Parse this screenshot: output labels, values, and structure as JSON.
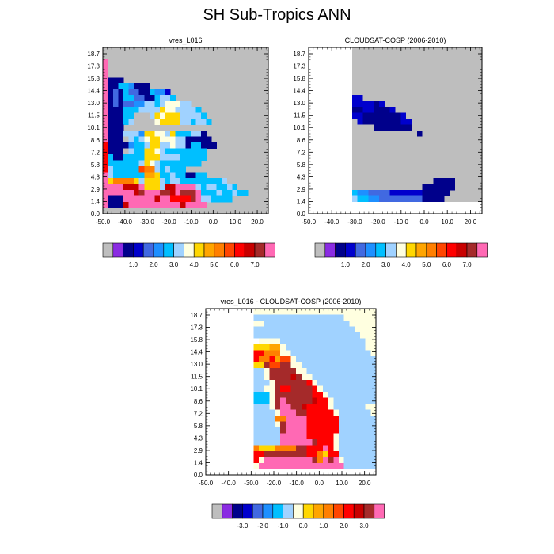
{
  "title": "SH Sub-Tropics ANN",
  "palette": [
    "#bebebe",
    "#8a2be2",
    "#00008b",
    "#0000cd",
    "#4169e1",
    "#1e90ff",
    "#00bfff",
    "#a0d2ff",
    "#ffffe0",
    "#ffd700",
    "#ffa500",
    "#ff7f00",
    "#ff4500",
    "#ff0000",
    "#c80000",
    "#a52a2a",
    "#ff69b4"
  ],
  "chart_data": [
    {
      "type": "heatmap",
      "title": "vres_L016",
      "x_ticks": [
        "-50.0",
        "-40.0",
        "-30.0",
        "-20.0",
        "-10.0",
        "0.0",
        "10.0",
        "20.0"
      ],
      "y_ticks": [
        "0.0",
        "1.4",
        "2.9",
        "4.3",
        "5.8",
        "7.2",
        "8.6",
        "10.1",
        "11.5",
        "13.0",
        "14.4",
        "15.8",
        "17.3",
        "18.7"
      ],
      "colorbar_labels": [
        "1.0",
        "2.0",
        "3.0",
        "4.0",
        "5.0",
        "6.0",
        "7.0"
      ],
      "x_range": [
        -50,
        25
      ],
      "y_levels": 14,
      "background_color": "#bebebe",
      "grid": [
        "................................",
        "................................",
        "QR..............................",
        "QR..............................",
        "Qd..............................",
        "QCCC............................",
        "QCCGGFCCC.......................",
        "QCECGEECCGFFD...................",
        "QCECGGEECCGHHG..................",
        "QCECEEFFHHGHIIIHH...............",
        "QCCCGGGHHHHJIIHHHHG.............",
        "QCCCGGRRRHJIJJJHHHHG............",
        "QCCCGHRRRRIJJJJHHGHHG...........",
        "QCCC.............................",
        "QCCCHHHFJJIIHJGGGHHC............",
        "QCCCRHGHIJJIIIHHCCCCC...........",
        "NCCCCFGGHJJHHIHHCGGCCC..........",
        "NCCCRHGGJJIHGGGGGGGG............",
        "NGCCGGGGJJJHHHHGGGGG............",
        "NGGGGGGHJIHGGGGGGGG.............",
        "NHGGGGGMLLHGHGGG................",
        "QHGGGGGGKKJGGHGGCCGG............",
        "QJLLLLJHJJJHGHHGGGGGGGGH........",
        "QQQQOOOQJJJHOOQQQQHGHHGGHGR.....",
        "QQQQQQOPQQQPPOQPPPQGGGHGGHGG....",
        "QCCCQQQQQQOQQNNNNPQHHGGGG.......",
        "QCCCOQQQQQQQQQQOQQQQ............",
        "................................"
      ]
    },
    {
      "type": "heatmap",
      "title": "CLOUDSAT-COSP (2006-2010)",
      "x_ticks": [
        "-50.0",
        "-40.0",
        "-30.0",
        "-20.0",
        "-10.0",
        "0.0",
        "10.0",
        "20.0"
      ],
      "y_ticks": [
        "0.0",
        "1.4",
        "2.9",
        "4.3",
        "5.8",
        "7.2",
        "8.6",
        "10.1",
        "11.5",
        "13.0",
        "14.4",
        "15.8",
        "17.3",
        "18.7"
      ],
      "colorbar_labels": [
        "1.0",
        "2.0",
        "3.0",
        "4.0",
        "5.0",
        "6.0",
        "7.0"
      ],
      "x_range": [
        -50,
        25
      ],
      "y_levels": 14,
      "background_color": "#bebebe",
      "missing_region": "white",
      "grid": [
        "wwwwwwww........................",
        "wwwwwwww........................",
        "wwwwwwww........................",
        "wwwwwwww........................",
        "wwwwwwww........................",
        "wwwwwwww........................",
        "wwwwwwww........................",
        "wwwwwwwwRRRR....................",
        "wwwwwwwwDDRRRR..................",
        "wwwwwwwwDDDDCDRR................",
        "wwwwwwwwCCDDCCCDRR..............",
        "wwwwwwwwDDCCCCCCCDR.............",
        "wwwwwwwwRDCCCCCCCDDR............",
        "wwwwwwwwRRRRCCCCCCCRR...........",
        "wwwwwwwwRRRRRRRRRRRRCRR.........",
        "wwwwwwwwRRRRRRRRRRRRRRRR........",
        "wwwwwwwwRRRRRRRRRRRRRRRRR.......",
        "wwwwwwwwRRRRRRRRRRRRRRRRR.......",
        "wwwwwwwwRRRRRRRRRRRRRRRRR.......",
        "wwwwwwwwRRRRRRRRRRRRRRRRR.......",
        "wwwwwwwwRRRRRRRRRRRRRRRRRR......",
        "wwwwwwwwRRRRRRRRRRRRRRRRRR......",
        "wwwwwwwwRRRRRRRRRRRRRRRCCCC.....",
        "wwwwwwwwRRRRRRRRRRRRRCCCCCC.....",
        "wwwwwwwwGFFEEEEDDDDDDCCCCC......",
        "wwwwwwwwHGGFFEEEEEEEECCCC.......",
        "wwwwwwwwwwwwwwwwwwwwwwwwwwwwwwww",
        "wwwwwwwwwwwwwwwwwwwwwwwwwwwwwwww"
      ]
    },
    {
      "type": "heatmap",
      "title": "vres_L016 - CLOUDSAT-COSP (2006-2010)",
      "x_ticks": [
        "-50.0",
        "-40.0",
        "-30.0",
        "-20.0",
        "-10.0",
        "0.0",
        "10.0",
        "20.0"
      ],
      "y_ticks": [
        "0.0",
        "1.4",
        "2.9",
        "4.3",
        "5.8",
        "7.2",
        "8.6",
        "10.1",
        "11.5",
        "13.0",
        "14.4",
        "15.8",
        "17.3",
        "18.7"
      ],
      "colorbar_labels": [
        "-3.0",
        "-2.0",
        "-1.0",
        "0.0",
        "1.0",
        "2.0",
        "3.0"
      ],
      "x_range": [
        -50,
        25
      ],
      "y_levels": 14,
      "background_color": "#ffffff",
      "grid": [
        "wwwwwwwwwIIIIIIIIIIIIIIIIIIIIIII",
        "wwwwwwwwwHHHHHHHHHHHHHHHHHIIIIII",
        "wwwwwwwwwIIHHHHHHHHHHHHHHHHIIIII",
        "wwwwwwwwwHHHHHHHHHHHHHHHHHHHIIII",
        "wwwwwwwwwHHHHHHHHHHHHHHHHHHHHIII",
        "wwwwwwwwwwIIIIHHHHHHHHHHHHHHHHII",
        "wwwwwwwwwJJJKKIHHHHHHHHHHHHHHHII",
        "wwwwwwwwwNNLLLIIHHHHHHHHHHHHHHHI",
        "wwwwwwwwwNLLNKMMIHHHHHHHHHHHHHHH",
        "wwwwwwwwwJJPMMPPIIHHHHHHHHHHHHHH",
        "wwwwwwwwwHHIPPPPPIIHHHHHHHHHHHHH",
        "wwwwwwwwwHHIPPPPOPIIHHHHHHHHHHHH",
        "wwwwwwwwwHHHIPPPPPPNIHHHHHHHHHHH",
        "wwwwwwwwwHHIIPNNPPPPNIHHHHHHHHHH",
        "wwwwwwwwwGGGIPPPPPPPNNIHHHHHHHHH",
        "wwwwwwwwwGGGIPQPPPPPONNIHHHHHHHH",
        "wwwwwwwwwHHHIPQQPPONNNNIHHHHHHII",
        "wwwwwwwwwHHHHIQQQPPNNNNNIHHHHHHI",
        "wwwwwwwwwHHHHLLQQQQNNNNNNHHHHHHH",
        "wwwwwwwwwHHHHIPQQQQNNNNNNHHHHHHH",
        "wwwwwwwwwHHHHHPQQQQNNNNNNHHHHHHH",
        "wwwwwwwwwHHHHHQQQQQNNNNNIHHHHHHH",
        "wwwwwwwwwHHHHHQQQQQQPNNNIHHHHHHH",
        "wwwwwwwwwLJJJLLLLPPNNNQNIHHHHHHH",
        "wwwwwwwwwNNPPPPPPPPNNLJNNHHHHHHH",
        "wwwwwwwwwNIQQQQQQQQQPLQPQIHHHHHH",
        "wwwwwwwwwIQQQQQQQQQQQQQQQQHHHHHH",
        "wwwwwwwwwwwwwwwwwwwwwwwwwwwwwwww"
      ]
    }
  ]
}
